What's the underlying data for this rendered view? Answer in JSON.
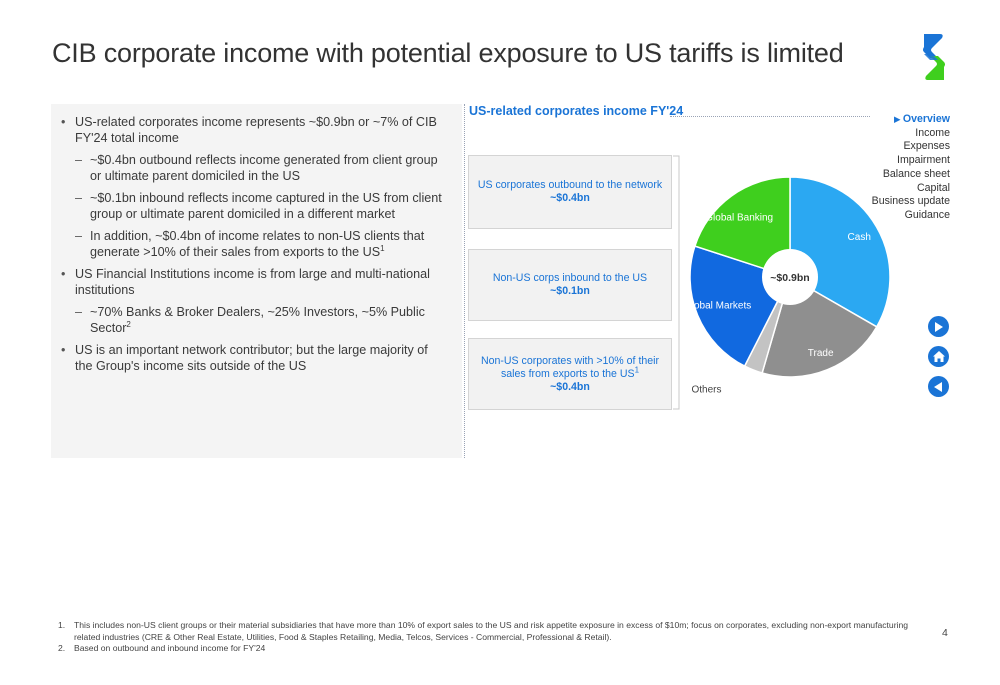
{
  "title": "CIB corporate income with potential exposure to US tariffs is limited",
  "bullets": [
    {
      "text": "US-related corporates income represents ~$0.9bn or ~7% of CIB FY'24 total income",
      "subs": [
        {
          "text": "~$0.4bn outbound reflects income generated from client group or ultimate parent domiciled in the US",
          "sup": ""
        },
        {
          "text": "~$0.1bn inbound reflects income captured in the US from client group or ultimate parent domiciled in a different market",
          "sup": ""
        },
        {
          "text": "In addition, ~$0.4bn of income relates to non-US clients that generate >10% of their sales from exports to the US",
          "sup": "1"
        }
      ]
    },
    {
      "text": "US Financial Institutions income is from large and multi-national institutions",
      "subs": [
        {
          "text": "~70% Banks & Broker Dealers, ~25% Investors, ~5% Public Sector",
          "sup": "2"
        }
      ]
    },
    {
      "text": "US is an important network contributor; but the large majority of the Group's income sits outside of the US",
      "subs": []
    }
  ],
  "boxes": [
    {
      "label": "US corporates outbound to the network",
      "sup": "",
      "value": "~$0.4bn"
    },
    {
      "label": "Non-US corps inbound to the US",
      "sup": "",
      "value": "~$0.1bn"
    },
    {
      "label": "Non-US corporates with >10% of their sales from exports to the US",
      "sup": "1",
      "value": "~$0.4bn"
    }
  ],
  "chart_data": {
    "type": "pie",
    "title": "US-related corporates income FY'24",
    "center_label": "~$0.9bn",
    "slices": [
      {
        "name": "Cash",
        "share": 0.333,
        "color": "#2ba8f2"
      },
      {
        "name": "Trade",
        "share": 0.212,
        "color": "#8f8f8f"
      },
      {
        "name": "Others",
        "share": 0.03,
        "color": "#c3c3c3"
      },
      {
        "name": "Global Markets",
        "share": 0.225,
        "color": "#1169e0"
      },
      {
        "name": "Global Banking",
        "share": 0.2,
        "color": "#3fcf1e"
      }
    ]
  },
  "nav": {
    "items": [
      {
        "label": "Overview",
        "active": true
      },
      {
        "label": "Income",
        "active": false
      },
      {
        "label": "Expenses",
        "active": false
      },
      {
        "label": "Impairment",
        "active": false
      },
      {
        "label": "Balance sheet",
        "active": false
      },
      {
        "label": "Capital",
        "active": false
      },
      {
        "label": "Business update",
        "active": false
      },
      {
        "label": "Guidance",
        "active": false
      }
    ]
  },
  "nav_buttons": {
    "next_icon": "play-icon",
    "home_icon": "home-icon",
    "prev_icon": "reverse-icon"
  },
  "footnotes": [
    {
      "num": "1.",
      "text": "This includes non-US client groups or their material subsidiaries that have more than 10% of export sales to the US and risk appetite exposure in excess of $10m; focus on corporates, excluding non-export manufacturing related industries (CRE & Other Real Estate, Utilities, Food & Staples Retailing, Media, Telcos, Services - Commercial, Professional & Retail)."
    },
    {
      "num": "2.",
      "text": "Based on outbound and inbound income for FY'24"
    }
  ],
  "page_number": "4",
  "colors": {
    "accent_blue": "#1a74d6",
    "logo_blue": "#1a74d6",
    "logo_green": "#3fcf1e"
  }
}
